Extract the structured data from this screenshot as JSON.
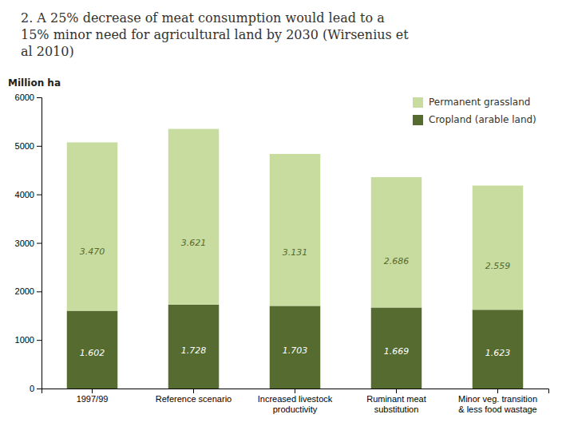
{
  "chart_data": {
    "type": "bar",
    "stacked": true,
    "title": "2. A 25% decrease of meat consumption would lead to a\n15% minor need for agricultural land by 2030 (Wirsenius et\nal 2010)",
    "ylabel": "Million ha",
    "categories": [
      "1997/99",
      "Reference scenario",
      "Increased livestock\nproductivity",
      "Ruminant meat\nsubstitution",
      "Minor veg. transition\n& less food wastage"
    ],
    "series": [
      {
        "name": "Cropland (arable land)",
        "color": "#556b2f",
        "values": [
          1602,
          1728,
          1703,
          1669,
          1623
        ],
        "value_labels": [
          "1.602",
          "1.728",
          "1.703",
          "1.669",
          "1.623"
        ]
      },
      {
        "name": "Permanent grassland",
        "color": "#c8dca0",
        "values": [
          3470,
          3621,
          3131,
          2686,
          2559
        ],
        "value_labels": [
          "3.470",
          "3.621",
          "3.131",
          "2.686",
          "2.559"
        ]
      }
    ],
    "data_labels": true,
    "ylim": [
      0,
      6000
    ],
    "yticks": [
      0,
      1000,
      2000,
      3000,
      4000,
      5000,
      6000
    ],
    "grid": false,
    "legend": "upper right"
  }
}
